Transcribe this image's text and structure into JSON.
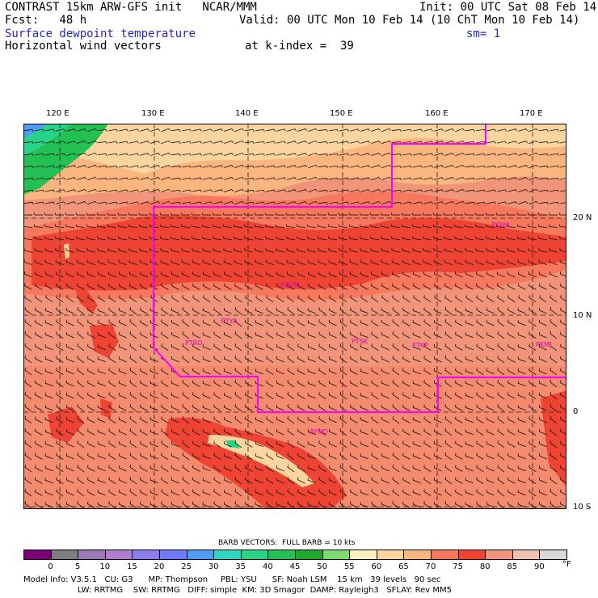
{
  "header": {
    "line1_left": "CONTRAST 15km ARW-GFS init   NCAR/MMM",
    "line1_right": "Init: 00 UTC Sat 08 Feb 14",
    "fcst": "Fcst:   48 h",
    "valid": "Valid: 00 UTC Mon 10 Feb 14 (10 ChT Mon 10 Feb 14)",
    "field": "Surface dewpoint temperature",
    "sm": "sm= 1",
    "vectors": "Horizontal wind vectors",
    "kindex": "at k-index =  39"
  },
  "map": {
    "lon_labels": [
      "120 E",
      "130 E",
      "140 E",
      "150 E",
      "160 E",
      "170 E"
    ],
    "lat_labels": [
      "20 N",
      "10 N",
      "0",
      "10 S"
    ],
    "stations": [
      "PGUM",
      "PTYA",
      "PTRO",
      "PTSK",
      "PTKP",
      "PKMJ",
      "PKWA",
      "AYMO"
    ],
    "colors": {
      "boundary": "#ff00ff",
      "station": "#e000c0"
    }
  },
  "colorbar": {
    "title": "BARB VECTORS:  FULL BARB = 10 kts",
    "labels": [
      "0",
      "5",
      "10",
      "15",
      "20",
      "25",
      "30",
      "35",
      "40",
      "45",
      "50",
      "55",
      "60",
      "65",
      "70",
      "75",
      "80",
      "85",
      "90"
    ],
    "unit": "°F",
    "colors": [
      "#7b0078",
      "#7d7d7d",
      "#9b7bb5",
      "#b27cd0",
      "#8c7cec",
      "#6e7bfa",
      "#4f9bf5",
      "#2fd7c1",
      "#27d386",
      "#23c053",
      "#1fa82b",
      "#7fdb6e",
      "#fff0c1",
      "#fbd5a0",
      "#fbb57e",
      "#f8785d",
      "#ef4433",
      "#f29479",
      "#eec3af",
      "#d9d9d9"
    ]
  },
  "footer": {
    "line1": "Model Info: V3.5.1   CU: G3      MP: Thompson     PBL: YSU      SF: Noah LSM    15 km   39 levels   90 sec",
    "line2": "LW: RRTMG    SW: RRTMG   DIFF: simple  KM: 3D Smagor  DAMP: Rayleigh3   SFLAY: Rev MM5"
  }
}
